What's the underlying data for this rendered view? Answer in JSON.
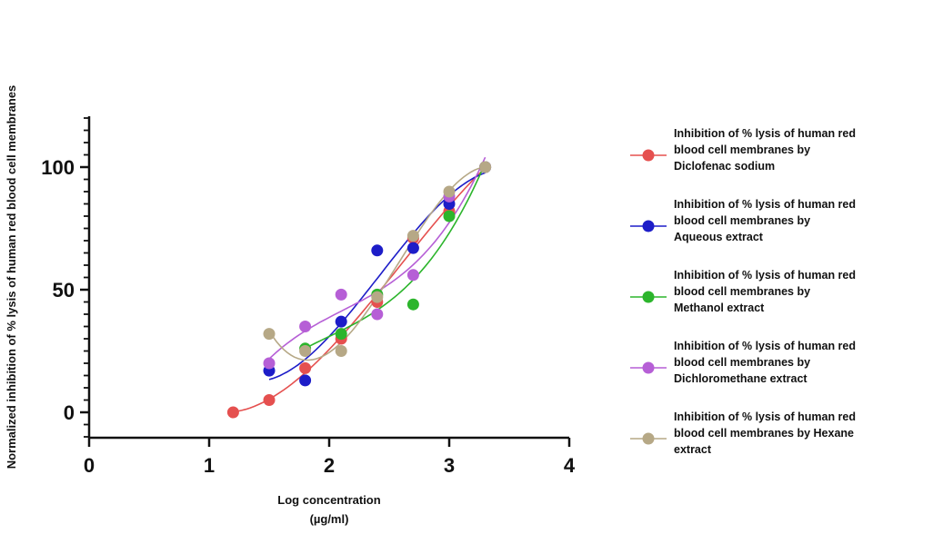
{
  "chart_data": {
    "type": "scatter",
    "xlabel": [
      "Log concentration",
      "(µg/ml)"
    ],
    "ylabel": "Normalized inhibition of % lysis of human red blood cell membranes",
    "xlim": [
      0,
      4
    ],
    "ylim": [
      -10,
      120
    ],
    "x_ticks": [
      0,
      1,
      2,
      3,
      4
    ],
    "y_ticks": [
      0,
      50,
      100
    ],
    "grid": false,
    "legend_position": "right",
    "series": [
      {
        "name": [
          "Inhibition of % lysis of human red",
          "blood cell membranes by",
          "Diclofenac sodium"
        ],
        "color": "#e5504f",
        "x": [
          1.2,
          1.5,
          1.8,
          2.1,
          2.4,
          2.7,
          3.0,
          3.3
        ],
        "y": [
          0,
          5,
          18,
          30,
          45,
          71,
          82,
          100
        ]
      },
      {
        "name": [
          "Inhibition of % lysis of human red",
          "blood cell membranes by",
          "Aqueous extract"
        ],
        "color": "#1d1dc8",
        "x": [
          1.5,
          1.8,
          2.1,
          2.4,
          2.7,
          3.0,
          3.3
        ],
        "y": [
          17,
          13,
          37,
          66,
          67,
          85,
          100
        ]
      },
      {
        "name": [
          "Inhibition of % lysis of human red",
          "blood cell membranes by",
          "Methanol extract"
        ],
        "color": "#2cb52c",
        "x": [
          1.8,
          2.1,
          2.4,
          2.7,
          3.0,
          3.3
        ],
        "y": [
          26,
          32,
          48,
          44,
          80,
          100
        ]
      },
      {
        "name": [
          "Inhibition of % lysis of human red",
          "blood cell membranes by",
          "Dichloromethane extract"
        ],
        "color": "#b65fd6",
        "x": [
          1.5,
          1.8,
          2.1,
          2.4,
          2.7,
          3.0,
          3.3
        ],
        "y": [
          20,
          35,
          48,
          40,
          56,
          88,
          100
        ]
      },
      {
        "name": [
          "Inhibition of % lysis of human red",
          "blood cell membranes by Hexane",
          "extract"
        ],
        "color": "#b6a886",
        "x": [
          1.5,
          1.8,
          2.1,
          2.4,
          2.7,
          3.0,
          3.3
        ],
        "y": [
          32,
          25,
          25,
          47,
          72,
          90,
          100
        ]
      }
    ]
  }
}
